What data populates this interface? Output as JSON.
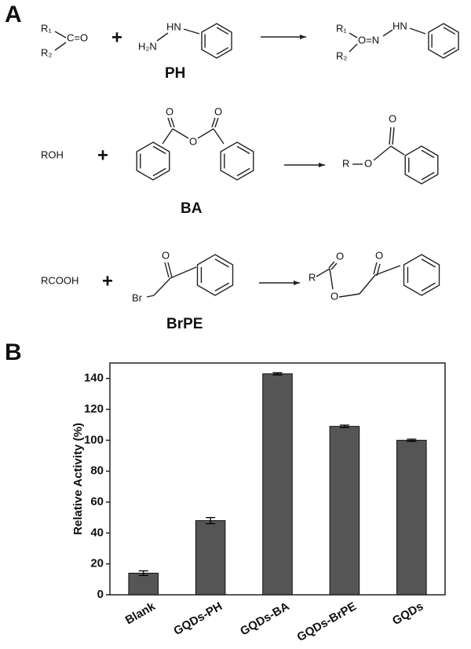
{
  "panel_labels": [
    "A",
    "B"
  ],
  "scheme": {
    "reactions": [
      {
        "reactant": {
          "r1": "R₁",
          "r2": "R₂",
          "group": "C=O"
        },
        "plus": "+",
        "reagent": {
          "nh": "HN",
          "nh2": "H₂N"
        },
        "reagent_name": "PH",
        "product": {
          "r1": "R₁",
          "r2": "R₂",
          "group": "O=N",
          "nh": "HN"
        }
      },
      {
        "reactant": "ROH",
        "plus": "+",
        "reagent": {
          "carbonyl_1": "O",
          "bridge": "O",
          "carbonyl_2": "O"
        },
        "reagent_name": "BA",
        "product": {
          "r": "R",
          "ester_o": "O",
          "carbonyl": "O"
        }
      },
      {
        "reactant": "RCOOH",
        "plus": "+",
        "reagent": {
          "carbonyl": "O",
          "halogen": "Br"
        },
        "reagent_name": "BrPE",
        "product": {
          "r": "R",
          "carbonyl_1": "O",
          "ester_o": "O",
          "carbonyl_2": "O"
        }
      }
    ]
  },
  "chart_data": {
    "type": "bar",
    "y_label": "Relative Activity (%)",
    "categories": [
      "Blank",
      "GQDs-PH",
      "GQDs-BA",
      "GQDs-BrPE",
      "GQDs"
    ],
    "values": [
      14,
      48,
      143,
      109,
      100
    ],
    "errors": [
      1.5,
      2,
      0.7,
      0.8,
      0.7
    ],
    "color": "#555555",
    "ylim": [
      0,
      150
    ],
    "yticks": [
      0,
      20,
      40,
      60,
      80,
      100,
      120,
      140
    ]
  }
}
